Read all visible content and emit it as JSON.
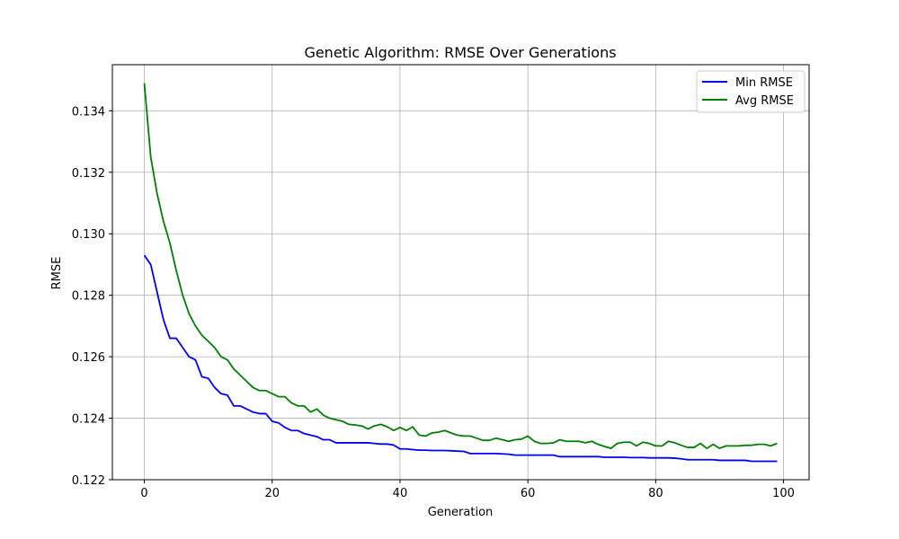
{
  "chart_data": {
    "type": "line",
    "title": "Genetic Algorithm: RMSE Over Generations",
    "xlabel": "Generation",
    "ylabel": "RMSE",
    "xlim": [
      -5,
      104
    ],
    "ylim": [
      0.122,
      0.1355
    ],
    "xticks": [
      0,
      20,
      40,
      60,
      80,
      100
    ],
    "yticks": [
      0.122,
      0.124,
      0.126,
      0.128,
      0.13,
      0.132,
      0.134
    ],
    "ytick_labels": [
      "0.122",
      "0.124",
      "0.126",
      "0.128",
      "0.130",
      "0.132",
      "0.134"
    ],
    "grid": true,
    "legend_position": "top-right",
    "series": [
      {
        "name": "Min RMSE",
        "color": "#0000ff",
        "values": [
          0.1293,
          0.129,
          0.1281,
          0.1272,
          0.1266,
          0.1266,
          0.1263,
          0.126,
          0.1259,
          0.12535,
          0.1253,
          0.125,
          0.1248,
          0.12475,
          0.1244,
          0.1244,
          0.1243,
          0.1242,
          0.12415,
          0.12415,
          0.1239,
          0.12385,
          0.1237,
          0.1236,
          0.1236,
          0.1235,
          0.12345,
          0.1234,
          0.1233,
          0.1233,
          0.1232,
          0.1232,
          0.1232,
          0.1232,
          0.1232,
          0.1232,
          0.12318,
          0.12316,
          0.12316,
          0.12313,
          0.123,
          0.123,
          0.12298,
          0.12296,
          0.12296,
          0.12295,
          0.12295,
          0.12295,
          0.12294,
          0.12293,
          0.12292,
          0.12285,
          0.12285,
          0.12285,
          0.12285,
          0.12285,
          0.12284,
          0.12283,
          0.1228,
          0.1228,
          0.1228,
          0.1228,
          0.1228,
          0.1228,
          0.1228,
          0.12275,
          0.12275,
          0.12275,
          0.12275,
          0.12275,
          0.12275,
          0.12275,
          0.12273,
          0.12273,
          0.12273,
          0.12273,
          0.12272,
          0.12272,
          0.12272,
          0.12271,
          0.12271,
          0.12271,
          0.12271,
          0.1227,
          0.12268,
          0.12265,
          0.12265,
          0.12265,
          0.12265,
          0.12265,
          0.12263,
          0.12263,
          0.12263,
          0.12263,
          0.12263,
          0.1226,
          0.1226,
          0.1226,
          0.1226,
          0.1226
        ]
      },
      {
        "name": "Avg RMSE",
        "color": "#008000",
        "values": [
          0.1349,
          0.1325,
          0.1313,
          0.1304,
          0.1297,
          0.1288,
          0.128,
          0.1274,
          0.127,
          0.1267,
          0.1265,
          0.1263,
          0.126,
          0.1259,
          0.1256,
          0.1254,
          0.1252,
          0.125,
          0.1249,
          0.1249,
          0.1248,
          0.1247,
          0.1247,
          0.1245,
          0.1244,
          0.1244,
          0.1242,
          0.1243,
          0.1241,
          0.124,
          0.12395,
          0.1239,
          0.1238,
          0.12378,
          0.12375,
          0.12365,
          0.12375,
          0.1238,
          0.12372,
          0.1236,
          0.1237,
          0.1236,
          0.12372,
          0.12345,
          0.12342,
          0.12352,
          0.12355,
          0.1236,
          0.12352,
          0.12345,
          0.12342,
          0.12342,
          0.12335,
          0.12328,
          0.12328,
          0.12335,
          0.1233,
          0.12325,
          0.1233,
          0.12332,
          0.12342,
          0.12325,
          0.12318,
          0.12318,
          0.1232,
          0.1233,
          0.12325,
          0.12325,
          0.12325,
          0.1232,
          0.12325,
          0.12315,
          0.12308,
          0.12302,
          0.12318,
          0.12322,
          0.12322,
          0.1231,
          0.12322,
          0.12318,
          0.1231,
          0.1231,
          0.12325,
          0.1232,
          0.12312,
          0.12305,
          0.12305,
          0.12318,
          0.12302,
          0.12315,
          0.12302,
          0.1231,
          0.1231,
          0.1231,
          0.12312,
          0.12312,
          0.12315,
          0.12315,
          0.1231,
          0.12318
        ]
      }
    ]
  }
}
